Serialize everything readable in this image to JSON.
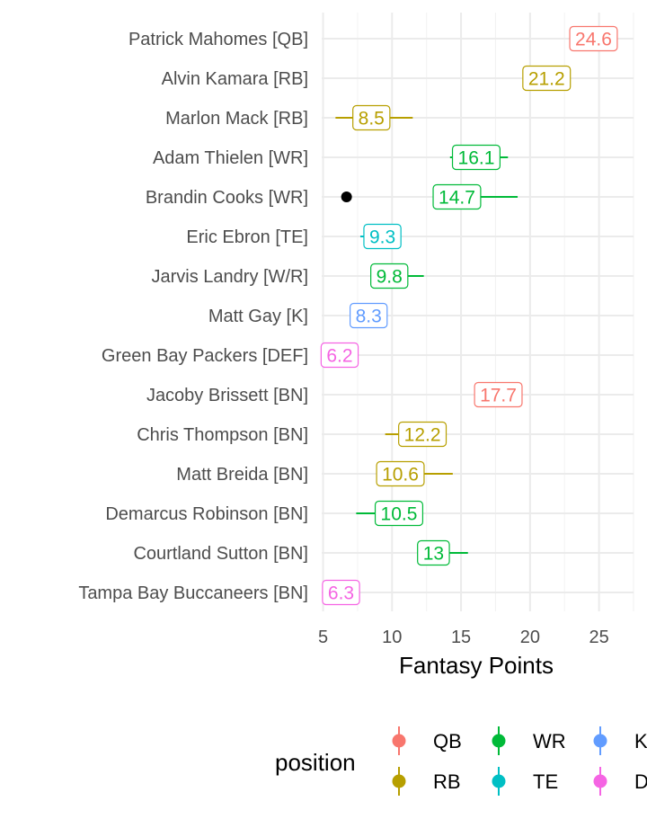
{
  "chart_data": {
    "type": "scatter",
    "xlabel": "Fantasy Points",
    "ylabel": "",
    "xlim": [
      4.9,
      27.5
    ],
    "xticks": [
      5,
      10,
      15,
      20,
      25
    ],
    "grid": true,
    "legend": {
      "title": "position",
      "placement": "bottom",
      "entries": [
        {
          "name": "QB",
          "color": "#F8766D"
        },
        {
          "name": "RB",
          "color": "#B79F00"
        },
        {
          "name": "WR",
          "color": "#00BA38"
        },
        {
          "name": "TE",
          "color": "#00BFC4"
        },
        {
          "name": "K",
          "color": "#619CFF"
        },
        {
          "name": "DEF",
          "color": "#F564E3"
        }
      ]
    },
    "players": [
      {
        "name": "Patrick Mahomes [QB]",
        "position": "QB",
        "value": 24.6,
        "low": 24.6,
        "high": 24.6,
        "label": "24.6"
      },
      {
        "name": "Alvin Kamara [RB]",
        "position": "RB",
        "value": 21.2,
        "low": 21.2,
        "high": 21.2,
        "label": "21.2"
      },
      {
        "name": "Marlon Mack [RB]",
        "position": "RB",
        "value": 8.5,
        "low": 5.9,
        "high": 11.5,
        "label": "8.5"
      },
      {
        "name": "Adam Thielen [WR]",
        "position": "WR",
        "value": 16.1,
        "low": 14.2,
        "high": 18.4,
        "label": "16.1"
      },
      {
        "name": "Brandin Cooks [WR]",
        "position": "WR",
        "value": 14.7,
        "low": 14.7,
        "high": 19.1,
        "label": "14.7"
      },
      {
        "name": "Eric Ebron [TE]",
        "position": "TE",
        "value": 9.3,
        "low": 7.7,
        "high": 9.3,
        "label": "9.3"
      },
      {
        "name": "Jarvis Landry [W/R]",
        "position": "WR",
        "value": 9.8,
        "low": 9.8,
        "high": 12.3,
        "label": "9.8"
      },
      {
        "name": "Matt Gay [K]",
        "position": "K",
        "value": 8.3,
        "low": 8.3,
        "high": 8.3,
        "label": "8.3"
      },
      {
        "name": "Green Bay Packers [DEF]",
        "position": "DEF",
        "value": 6.2,
        "low": 6.2,
        "high": 6.2,
        "label": "6.2"
      },
      {
        "name": "Jacoby Brissett [BN]",
        "position": "QB",
        "value": 17.7,
        "low": 17.7,
        "high": 17.7,
        "label": "17.7"
      },
      {
        "name": "Chris Thompson [BN]",
        "position": "RB",
        "value": 12.2,
        "low": 9.5,
        "high": 12.2,
        "label": "12.2"
      },
      {
        "name": "Matt Breida [BN]",
        "position": "RB",
        "value": 10.6,
        "low": 10.6,
        "high": 14.4,
        "label": "10.6"
      },
      {
        "name": "Demarcus Robinson [BN]",
        "position": "WR",
        "value": 10.5,
        "low": 7.4,
        "high": 10.5,
        "label": "10.5"
      },
      {
        "name": "Courtland Sutton [BN]",
        "position": "WR",
        "value": 13,
        "low": 13,
        "high": 15.5,
        "label": "13"
      },
      {
        "name": "Tampa Bay Buccaneers [BN]",
        "position": "DEF",
        "value": 6.3,
        "low": 6.3,
        "high": 6.3,
        "label": "6.3"
      }
    ],
    "highlight_point": {
      "player": "Brandin Cooks [WR]",
      "value": 6.7,
      "color": "#000000"
    }
  }
}
